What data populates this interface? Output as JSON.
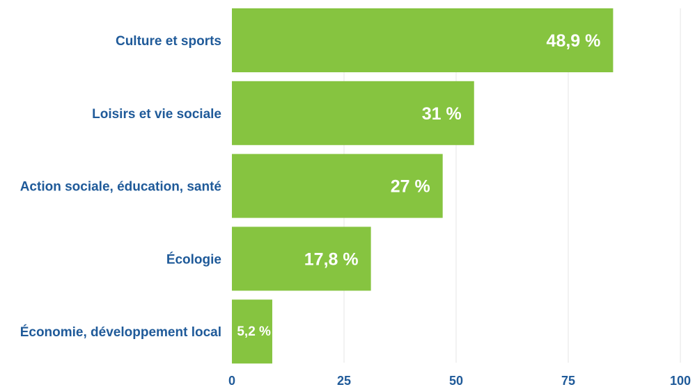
{
  "chart_data": {
    "type": "bar",
    "orientation": "horizontal",
    "title": "",
    "xlabel": "",
    "ylabel": "",
    "categories": [
      "Culture et sports",
      "Loisirs et vie sociale",
      "Action sociale, éducation, santé",
      "Écologie",
      "Économie, développement local"
    ],
    "values": [
      85,
      54,
      47,
      31,
      9
    ],
    "value_labels": [
      "48,9 %",
      "31 %",
      "27 %",
      "17,8 %",
      "5,2 %"
    ],
    "xlim": [
      0,
      100
    ],
    "xticks": [
      0,
      25,
      50,
      75,
      100
    ],
    "xtick_labels": [
      "0",
      "25",
      "50",
      "75",
      "100"
    ],
    "grid": "vertical",
    "legend": "none",
    "colors": {
      "bar": "#86c440",
      "category_text": "#1f5a99",
      "tick_text": "#1f5a99",
      "value_text": "#ffffff",
      "grid": "#e6e6e6"
    }
  }
}
